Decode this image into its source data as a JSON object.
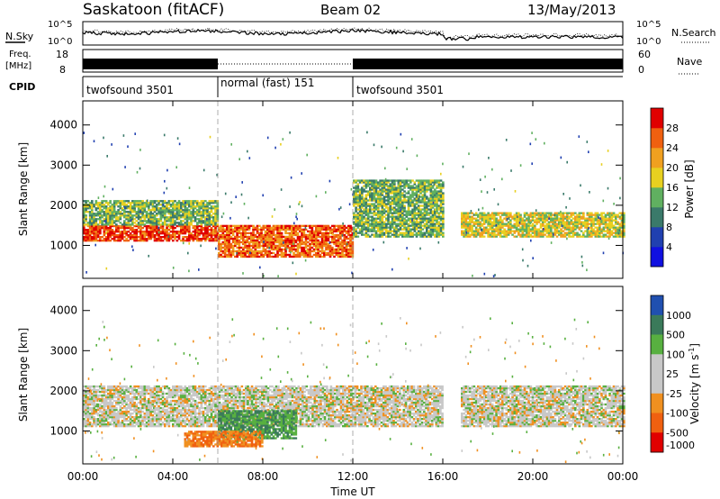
{
  "header": {
    "station": "Saskatoon (fitACF)",
    "beam": "Beam 02",
    "date": "13/May/2013"
  },
  "noise_panel": {
    "left_label": "N.Sky",
    "right_label": "N.Search",
    "ticks_left": [
      "10^5",
      "10^0"
    ],
    "ticks_right": [
      "10^5",
      "10^0"
    ]
  },
  "freq_panel": {
    "left_label_1": "Freq.",
    "left_label_2": "[MHz]",
    "right_label": "Nave",
    "ticks_left": [
      "18",
      "8"
    ],
    "ticks_right": [
      "60",
      "0"
    ]
  },
  "cpid_panel": {
    "label": "CPID",
    "segments": [
      {
        "name": "twofsound 3501",
        "start": 0,
        "end": 6
      },
      {
        "name": "normal (fast) 151",
        "start": 6,
        "end": 12
      },
      {
        "name": "twofsound 3501",
        "start": 12,
        "end": 24
      }
    ]
  },
  "chart_data": [
    {
      "type": "heatmap",
      "title": "",
      "xlabel": "Time UT",
      "ylabel": "Slant Range [km]",
      "x_ticks": [
        "00:00",
        "04:00",
        "08:00",
        "12:00",
        "16:00",
        "20:00",
        "00:00"
      ],
      "y_ticks": [
        "1000",
        "2000",
        "3000",
        "4000"
      ],
      "xlim": [
        0,
        24
      ],
      "ylim": [
        180,
        4600
      ],
      "colorbar": {
        "label": "Power [dB]",
        "ticks": [
          "4",
          "8",
          "12",
          "16",
          "20",
          "24",
          "28"
        ],
        "range": [
          0,
          30
        ]
      },
      "echo_regions": [
        {
          "t0": 0.0,
          "t1": 6.0,
          "r0": 1100,
          "r1": 1500,
          "level": 28
        },
        {
          "t0": 0.0,
          "t1": 6.0,
          "r0": 1500,
          "r1": 2100,
          "level": 14
        },
        {
          "t0": 6.0,
          "t1": 12.0,
          "r0": 700,
          "r1": 1500,
          "level": 26
        },
        {
          "t0": 12.0,
          "t1": 16.0,
          "r0": 1200,
          "r1": 2600,
          "level": 14
        },
        {
          "t0": 16.8,
          "t1": 24.0,
          "r0": 1200,
          "r1": 1800,
          "level": 18
        }
      ]
    },
    {
      "type": "heatmap",
      "title": "",
      "xlabel": "Time UT",
      "ylabel": "Slant Range [km]",
      "x_ticks": [
        "00:00",
        "04:00",
        "08:00",
        "12:00",
        "16:00",
        "20:00",
        "00:00"
      ],
      "y_ticks": [
        "1000",
        "2000",
        "3000",
        "4000"
      ],
      "xlim": [
        0,
        24
      ],
      "ylim": [
        180,
        4600
      ],
      "colorbar": {
        "label": "Velocity [m s^-1]",
        "ticks": [
          "1000",
          "500",
          "100",
          "25",
          "-25",
          "-100",
          "-500",
          "-1000"
        ]
      },
      "echo_regions": [
        {
          "t0": 0.0,
          "t1": 16.0,
          "r0": 1100,
          "r1": 2100,
          "level": 0
        },
        {
          "t0": 6.0,
          "t1": 9.5,
          "r0": 800,
          "r1": 1500,
          "level": 300
        },
        {
          "t0": 4.5,
          "t1": 8.0,
          "r0": 600,
          "r1": 1000,
          "level": -300
        },
        {
          "t0": 16.8,
          "t1": 24.0,
          "r0": 1100,
          "r1": 2100,
          "level": 0
        }
      ]
    }
  ],
  "colors": {
    "power_scale": [
      "#1010e0",
      "#2040b0",
      "#3a7a6a",
      "#60b060",
      "#e8d020",
      "#f0a020",
      "#f06010",
      "#e00000"
    ],
    "velocity_scale": [
      "#2050b0",
      "#3a7a5a",
      "#58b040",
      "#c8c8c8",
      "#c8c8c8",
      "#f09020",
      "#f06010",
      "#e00000"
    ],
    "grey": "#c8c8c8"
  }
}
